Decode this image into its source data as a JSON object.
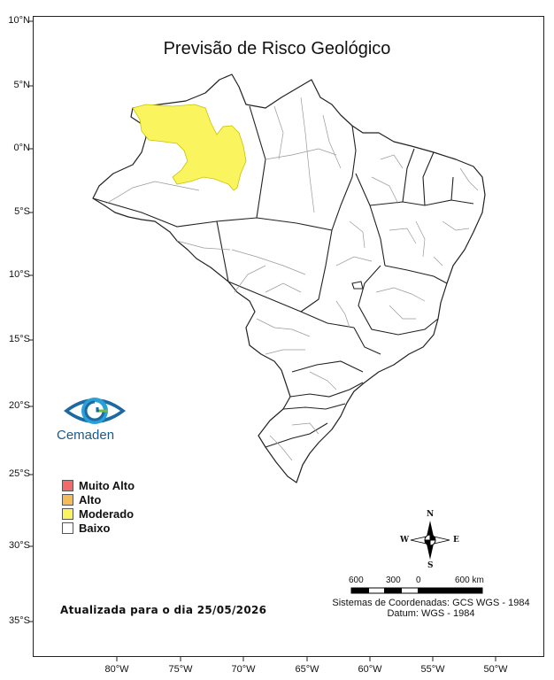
{
  "title": "Previsão de Risco Geológico",
  "lat_labels": [
    "10°N",
    "5°N",
    "0°N",
    "5°S",
    "10°S",
    "15°S",
    "20°S",
    "25°S",
    "30°S",
    "35°S"
  ],
  "lon_labels": [
    "80°W",
    "75°W",
    "70°W",
    "65°W",
    "60°W",
    "55°W",
    "50°W"
  ],
  "legend": [
    {
      "label": "Muito Alto",
      "color": "#f26b6b"
    },
    {
      "label": "Alto",
      "color": "#f5bd5a"
    },
    {
      "label": "Moderado",
      "color": "#faf55f"
    },
    {
      "label": "Baixo",
      "color": "#ffffff"
    }
  ],
  "logo_text": "Cemaden",
  "updated": "Atualizada para o dia 25/05/2026",
  "coord_system": "Sistemas de Coordenadas: GCS WGS - 1984",
  "datum": "Datum: WGS - 1984",
  "scalebar": {
    "labels": [
      "600",
      "300",
      "0",
      "600 km"
    ]
  },
  "north_arrow": {
    "n": "N",
    "s": "S",
    "e": "E",
    "w": "W"
  },
  "highlight_region": {
    "risk": "Moderado",
    "color": "#faf55f"
  }
}
